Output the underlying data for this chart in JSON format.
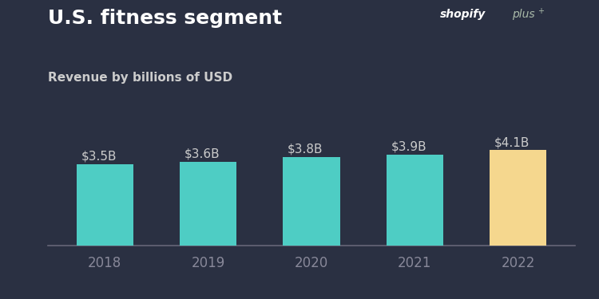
{
  "categories": [
    "2018",
    "2019",
    "2020",
    "2021",
    "2022"
  ],
  "values": [
    3.5,
    3.6,
    3.8,
    3.9,
    4.1
  ],
  "labels": [
    "$3.5B",
    "$3.6B",
    "$3.8B",
    "$3.9B",
    "$4.1B"
  ],
  "bar_colors": [
    "#4ECDC4",
    "#4ECDC4",
    "#4ECDC4",
    "#4ECDC4",
    "#F5D78E"
  ],
  "background_color": "#2A3042",
  "title": "U.S. fitness segment",
  "subtitle": "Revenue by billions of USD",
  "title_color": "#FFFFFF",
  "subtitle_color": "#CCCCCC",
  "label_color": "#CCCCCC",
  "tick_color": "#888899",
  "axis_line_color": "#666677",
  "ylim": [
    0,
    6.2
  ],
  "bar_width": 0.55,
  "title_fontsize": 18,
  "subtitle_fontsize": 11,
  "label_fontsize": 11,
  "tick_fontsize": 12
}
